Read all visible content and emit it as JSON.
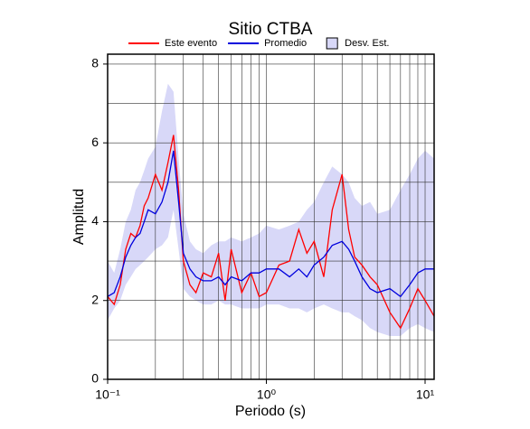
{
  "chart_data": {
    "type": "line",
    "title": "Sitio CTBA",
    "xlabel": "Periodo (s)",
    "ylabel": "Amplitud",
    "xscale": "log",
    "grid": true,
    "xlim": [
      0.1,
      11.4
    ],
    "ylim": [
      0,
      8.25
    ],
    "xticks": [
      {
        "value": 0.1,
        "label": "10⁻¹"
      },
      {
        "value": 1,
        "label": "10⁰"
      },
      {
        "value": 10,
        "label": "10¹"
      }
    ],
    "xminorticks": [
      0.2,
      0.3,
      0.4,
      0.5,
      0.6,
      0.7,
      0.8,
      0.9,
      2,
      3,
      4,
      5,
      6,
      7,
      8,
      9
    ],
    "yticks": [
      0,
      2,
      4,
      6,
      8
    ],
    "yminorticks": [
      1,
      3,
      5,
      7
    ],
    "x": [
      0.1,
      0.11,
      0.12,
      0.13,
      0.14,
      0.15,
      0.16,
      0.17,
      0.18,
      0.2,
      0.22,
      0.24,
      0.26,
      0.28,
      0.3,
      0.33,
      0.36,
      0.4,
      0.45,
      0.5,
      0.55,
      0.6,
      0.7,
      0.8,
      0.9,
      1.0,
      1.2,
      1.4,
      1.6,
      1.8,
      2.0,
      2.3,
      2.6,
      3.0,
      3.3,
      3.6,
      4.0,
      4.5,
      5,
      6,
      7,
      8,
      9,
      10,
      11.4
    ],
    "band": {
      "name": "Desv. Est.",
      "color": "#d8d8f8",
      "upper": [
        3.0,
        2.7,
        3.3,
        4.0,
        4.3,
        4.8,
        5.0,
        5.3,
        5.6,
        5.9,
        6.8,
        7.5,
        7.3,
        5.6,
        4.2,
        3.5,
        3.3,
        3.2,
        3.4,
        3.5,
        3.5,
        3.6,
        3.5,
        3.6,
        3.7,
        3.9,
        3.8,
        3.9,
        4.0,
        4.3,
        4.5,
        5.0,
        5.4,
        5.2,
        5.0,
        4.6,
        4.4,
        4.5,
        4.2,
        4.3,
        4.8,
        5.2,
        5.6,
        5.8,
        5.6
      ],
      "lower": [
        1.5,
        1.8,
        2.0,
        2.4,
        2.6,
        2.8,
        2.9,
        3.0,
        3.1,
        3.3,
        3.4,
        3.6,
        4.3,
        3.3,
        2.3,
        2.1,
        2.0,
        1.9,
        1.9,
        2.0,
        1.9,
        1.9,
        1.8,
        1.8,
        1.8,
        1.9,
        1.9,
        1.8,
        1.8,
        1.7,
        1.8,
        1.9,
        1.8,
        1.7,
        1.7,
        1.6,
        1.5,
        1.3,
        1.2,
        1.1,
        1.1,
        1.3,
        1.4,
        1.3,
        1.2
      ]
    },
    "series": [
      {
        "name": "Este evento",
        "color": "#ff0000",
        "values": [
          2.1,
          1.9,
          2.4,
          3.3,
          3.7,
          3.6,
          3.9,
          4.4,
          4.6,
          5.2,
          4.8,
          5.5,
          6.2,
          4.8,
          3.0,
          2.4,
          2.2,
          2.7,
          2.6,
          3.2,
          2.0,
          3.3,
          2.2,
          2.7,
          2.1,
          2.2,
          2.9,
          3.0,
          3.8,
          3.2,
          3.5,
          2.6,
          4.3,
          5.2,
          3.8,
          3.1,
          2.9,
          2.6,
          2.4,
          1.7,
          1.3,
          1.8,
          2.3,
          2.0,
          1.6
        ]
      },
      {
        "name": "Promedio",
        "color": "#0000dd",
        "values": [
          2.1,
          2.2,
          2.6,
          3.1,
          3.4,
          3.6,
          3.7,
          4.0,
          4.3,
          4.2,
          4.5,
          5.0,
          5.8,
          4.5,
          3.2,
          2.8,
          2.6,
          2.5,
          2.5,
          2.6,
          2.4,
          2.6,
          2.5,
          2.7,
          2.7,
          2.8,
          2.8,
          2.6,
          2.8,
          2.6,
          2.9,
          3.1,
          3.4,
          3.5,
          3.3,
          3.0,
          2.6,
          2.3,
          2.2,
          2.3,
          2.1,
          2.4,
          2.7,
          2.8,
          2.8
        ]
      }
    ]
  }
}
